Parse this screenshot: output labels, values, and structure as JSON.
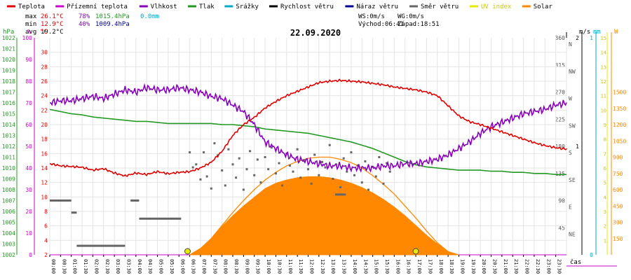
{
  "legend": [
    {
      "label": "Teplota",
      "color": "#e00000"
    },
    {
      "label": "Přízemní teplota",
      "color": "#cc00cc"
    },
    {
      "label": "Vlhkost",
      "color": "#8800bb"
    },
    {
      "label": "Tlak",
      "color": "#229922"
    },
    {
      "label": "Srážky",
      "color": "#00aacc"
    },
    {
      "label": "Rychlost větru",
      "color": "#000000"
    },
    {
      "label": "Náraz větru",
      "color": "#000099"
    },
    {
      "label": "Směr větru",
      "color": "#666666"
    },
    {
      "label": "UV index",
      "color": "#e8e800"
    },
    {
      "label": "Solar",
      "color": "#ff8800"
    }
  ],
  "stats": {
    "max_label": "max",
    "max_temp": "26.1°C",
    "max_hum": "78%",
    "max_press": "1015.4hPa",
    "max_rain": "0.0mm",
    "min_label": "min",
    "min_temp": "12.9°C",
    "min_hum": "40%",
    "min_press": "1009.4hPa",
    "avg_label": "avg",
    "avg_temp": "19.2°C",
    "ws": "WS:0m/s",
    "wg": "WG:0m/s",
    "sunrise": "Východ:06:41",
    "sunset": "Západ:18:51"
  },
  "colors": {
    "temp": "#e00000",
    "humidity": "#8800bb",
    "pressure": "#229922",
    "rain": "#00aacc",
    "solar": "#ff8800",
    "wind_dir": "#666666",
    "uv": "#e8e800",
    "baseline": "#cc00cc"
  },
  "axis_units": {
    "hpa": "hPa",
    "pct": "%",
    "celsius": "°C",
    "ms": "m/s",
    "mm": "mm",
    "w": "W"
  },
  "chart_data": {
    "type": "line",
    "title": "22.09.2020",
    "xlabel": "čas",
    "x_ticks": [
      "00:00",
      "00:30",
      "01:00",
      "01:30",
      "02:00",
      "02:30",
      "03:00",
      "03:30",
      "04:00",
      "04:30",
      "05:00",
      "05:30",
      "06:00",
      "06:30",
      "07:00",
      "07:30",
      "08:00",
      "08:30",
      "09:00",
      "09:30",
      "10:00",
      "10:30",
      "11:00",
      "11:30",
      "12:00",
      "12:30",
      "13:00",
      "13:30",
      "14:00",
      "14:30",
      "15:00",
      "15:30",
      "16:00",
      "16:30",
      "17:00",
      "17:30",
      "18:00",
      "18:30",
      "19:00",
      "19:30",
      "20:00",
      "20:30",
      "21:00",
      "21:30",
      "22:00",
      "22:30",
      "23:00",
      "23:30"
    ],
    "axes": {
      "pressure": {
        "unit": "hPa",
        "range": [
          1002,
          1022
        ],
        "ticks": [
          1002,
          1003,
          1004,
          1005,
          1006,
          1007,
          1008,
          1009,
          1010,
          1011,
          1012,
          1013,
          1014,
          1015,
          1016,
          1017,
          1018,
          1019,
          1020,
          1021,
          1022
        ]
      },
      "humidity": {
        "unit": "%",
        "range": [
          0,
          100
        ],
        "ticks": [
          0,
          10,
          20,
          30,
          40,
          50,
          60,
          70,
          80,
          90,
          100
        ]
      },
      "temperature": {
        "unit": "°C",
        "range": [
          2,
          32
        ],
        "ticks": [
          2,
          4,
          6,
          8,
          10,
          12,
          14,
          16,
          18,
          20,
          22,
          24,
          26,
          28,
          30
        ]
      },
      "wind_dir": {
        "range": [
          0,
          360
        ],
        "ticks": [
          45,
          90,
          135,
          180,
          225,
          270,
          315,
          360
        ],
        "labels": [
          "NE",
          "E",
          "SE",
          "S",
          "SW",
          "W",
          "NW",
          "N"
        ]
      },
      "wind_speed": {
        "unit": "m/s",
        "range": [
          0,
          2
        ],
        "ticks": [
          1,
          2
        ]
      },
      "rain": {
        "unit": "mm",
        "range": [
          0,
          1
        ],
        "ticks": [
          0,
          1
        ]
      },
      "uv": {
        "range": [
          0,
          15
        ],
        "ticks": [
          1,
          2,
          3,
          4,
          5,
          6,
          7,
          8,
          9,
          10,
          11,
          12,
          13,
          14,
          15
        ]
      },
      "solar": {
        "unit": "W",
        "range": [
          0,
          2000
        ],
        "ticks": [
          150,
          300,
          450,
          600,
          750,
          900,
          1050,
          1200,
          1350,
          1500
        ]
      }
    },
    "series": [
      {
        "name": "Teplota",
        "axis": "temperature",
        "x_hours": [
          0,
          0.5,
          1,
          1.5,
          2,
          2.5,
          3,
          3.5,
          4,
          4.5,
          5,
          5.5,
          6,
          6.5,
          7,
          7.5,
          8,
          8.5,
          9,
          9.5,
          10,
          10.5,
          11,
          11.5,
          12,
          12.5,
          13,
          13.5,
          14,
          14.5,
          15,
          15.5,
          16,
          16.5,
          17,
          17.5,
          18,
          18.5,
          19,
          19.5,
          20,
          20.5,
          21,
          21.5,
          22,
          22.5,
          23,
          23.5,
          24
        ],
        "values": [
          14.6,
          14.3,
          14.2,
          14.1,
          13.7,
          13.9,
          13.3,
          12.9,
          13.3,
          13.1,
          13.5,
          13.2,
          13.4,
          13.5,
          14.0,
          14.8,
          16.3,
          18.5,
          20.0,
          21.0,
          22.3,
          23.2,
          24.0,
          24.6,
          25.2,
          25.8,
          26.0,
          26.1,
          26.0,
          25.9,
          25.7,
          25.5,
          25.2,
          25.0,
          24.8,
          24.5,
          24.0,
          22.6,
          21.2,
          20.4,
          20.0,
          19.5,
          19.0,
          18.5,
          18.0,
          17.5,
          17.1,
          16.8,
          16.6
        ]
      },
      {
        "name": "Vlhkost",
        "axis": "humidity",
        "x_hours": [
          0,
          0.5,
          1,
          1.5,
          2,
          2.5,
          3,
          3.5,
          4,
          4.5,
          5,
          5.5,
          6,
          6.5,
          7,
          7.5,
          8,
          8.5,
          9,
          9.5,
          10,
          10.5,
          11,
          11.5,
          12,
          12.5,
          13,
          13.5,
          14,
          14.5,
          15,
          15.5,
          16,
          16.5,
          17,
          17.5,
          18,
          18.5,
          19,
          19.5,
          20,
          20.5,
          21,
          21.5,
          22,
          22.5,
          23,
          23.5,
          24
        ],
        "values": [
          70,
          71,
          71,
          72,
          73,
          72,
          74,
          76,
          75,
          77,
          76,
          76,
          77,
          76,
          75,
          73,
          72,
          69,
          66,
          60,
          52,
          49,
          46,
          44,
          43,
          42,
          41,
          41,
          40,
          40,
          40,
          41,
          41,
          42,
          42,
          43,
          44,
          46,
          49,
          52,
          56,
          59,
          61,
          63,
          65,
          66,
          67,
          69,
          70
        ]
      },
      {
        "name": "Tlak",
        "axis": "pressure",
        "x_hours": [
          0,
          0.5,
          1,
          1.5,
          2,
          2.5,
          3,
          3.5,
          4,
          4.5,
          5,
          5.5,
          6,
          6.5,
          7,
          7.5,
          8,
          8.5,
          9,
          9.5,
          10,
          10.5,
          11,
          11.5,
          12,
          12.5,
          13,
          13.5,
          14,
          14.5,
          15,
          15.5,
          16,
          16.5,
          17,
          17.5,
          18,
          18.5,
          19,
          19.5,
          20,
          20.5,
          21,
          21.5,
          22,
          22.5,
          23,
          23.5,
          24
        ],
        "values": [
          1015.4,
          1015.2,
          1015.0,
          1014.9,
          1014.7,
          1014.6,
          1014.5,
          1014.4,
          1014.3,
          1014.3,
          1014.2,
          1014.1,
          1014.1,
          1014.1,
          1014.1,
          1014.1,
          1014.0,
          1014.0,
          1013.9,
          1013.8,
          1013.6,
          1013.5,
          1013.4,
          1013.3,
          1013.2,
          1013.0,
          1012.8,
          1012.6,
          1012.4,
          1012.1,
          1011.8,
          1011.4,
          1011.0,
          1010.6,
          1010.3,
          1010.1,
          1010.0,
          1009.9,
          1009.8,
          1009.8,
          1009.8,
          1009.7,
          1009.7,
          1009.6,
          1009.6,
          1009.5,
          1009.5,
          1009.4,
          1009.4
        ]
      },
      {
        "name": "Solar",
        "axis": "solar",
        "fill": true,
        "x_hours": [
          6.5,
          7,
          7.5,
          8,
          8.5,
          9,
          9.5,
          10,
          10.5,
          11,
          11.5,
          12,
          12.5,
          13,
          13.5,
          14,
          14.5,
          15,
          15.5,
          16,
          16.5,
          17,
          17.5,
          18,
          18.5,
          19
        ],
        "values": [
          0,
          60,
          150,
          260,
          360,
          450,
          530,
          610,
          660,
          690,
          710,
          720,
          720,
          710,
          690,
          660,
          620,
          570,
          510,
          440,
          360,
          270,
          180,
          100,
          30,
          0
        ]
      },
      {
        "name": "Solar (theoretical)",
        "axis": "solar",
        "x_hours": [
          6.7,
          7,
          7.5,
          8,
          8.5,
          9,
          9.5,
          10,
          10.5,
          11,
          11.5,
          12,
          12.5,
          13,
          13.5,
          14,
          14.5,
          15,
          15.5,
          16,
          16.5,
          17,
          17.5,
          18,
          18.5,
          18.85
        ],
        "values": [
          0,
          50,
          150,
          270,
          390,
          500,
          600,
          690,
          760,
          820,
          860,
          890,
          900,
          900,
          880,
          850,
          800,
          730,
          650,
          560,
          450,
          340,
          220,
          110,
          30,
          0
        ]
      },
      {
        "name": "Směr větru",
        "axis": "wind_dir",
        "style": "steps",
        "segments": [
          [
            0,
            2,
            90
          ],
          [
            2,
            2.5,
            70
          ],
          [
            2.5,
            7,
            15
          ],
          [
            7.5,
            8.3,
            90
          ],
          [
            8.3,
            12.2,
            60
          ],
          [
            26.5,
            27.5,
            100
          ]
        ]
      },
      {
        "name": "Směr větru (points)",
        "axis": "wind_dir",
        "style": "points",
        "points": [
          [
            13.0,
            170
          ],
          [
            13.3,
            145
          ],
          [
            13.6,
            150
          ],
          [
            14.0,
            125
          ],
          [
            14.3,
            170
          ],
          [
            14.6,
            130
          ],
          [
            15.0,
            110
          ],
          [
            15.3,
            185
          ],
          [
            15.6,
            165
          ],
          [
            16.0,
            140
          ],
          [
            16.3,
            115
          ],
          [
            16.6,
            175
          ],
          [
            17.0,
            150
          ],
          [
            17.3,
            128
          ],
          [
            17.6,
            160
          ],
          [
            18.0,
            108
          ],
          [
            18.3,
            142
          ],
          [
            18.6,
            172
          ],
          [
            19.0,
            132
          ],
          [
            19.3,
            158
          ],
          [
            19.6,
            120
          ],
          [
            20.0,
            162
          ],
          [
            20.3,
            142
          ],
          [
            20.6,
            178
          ],
          [
            21.0,
            135
          ],
          [
            21.3,
            152
          ],
          [
            21.6,
            115
          ],
          [
            22.0,
            168
          ],
          [
            22.3,
            148
          ],
          [
            22.6,
            138
          ],
          [
            23.0,
            175
          ],
          [
            23.3,
            128
          ],
          [
            23.6,
            157
          ],
          [
            24.0,
            142
          ],
          [
            24.3,
            118
          ],
          [
            24.6,
            166
          ],
          [
            25.0,
            132
          ],
          [
            25.3,
            154
          ],
          [
            25.6,
            145
          ],
          [
            26.0,
            182
          ],
          [
            26.3,
            126
          ],
          [
            26.6,
            150
          ],
          [
            27.0,
            112
          ],
          [
            27.3,
            160
          ],
          [
            27.6,
            138
          ],
          [
            28.0,
            170
          ],
          [
            28.3,
            132
          ],
          [
            28.6,
            148
          ],
          [
            29.0,
            120
          ],
          [
            29.3,
            155
          ],
          [
            29.6,
            108
          ],
          [
            30.0,
            146
          ],
          [
            30.3,
            130
          ],
          [
            30.6,
            162
          ],
          [
            31.0,
            118
          ],
          [
            31.3,
            152
          ],
          [
            31.6,
            138
          ]
        ]
      },
      {
        "name": "UV index",
        "axis": "uv",
        "style": "markers",
        "points": [
          [
            12.8,
            0.2
          ],
          [
            34.0,
            0.2
          ]
        ]
      }
    ],
    "legend_placement": "top",
    "grid": true
  }
}
